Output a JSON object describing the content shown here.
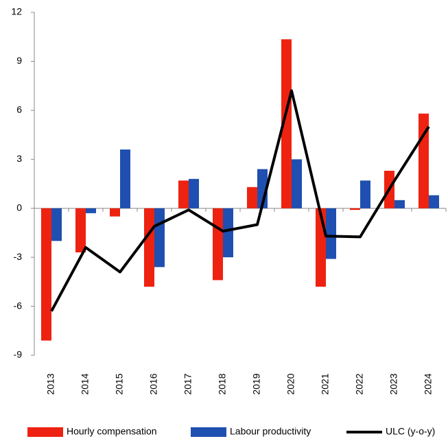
{
  "chart_data": {
    "type": "bar_line",
    "categories": [
      "2013",
      "2014",
      "2015",
      "2016",
      "2017",
      "2018",
      "2019",
      "2020",
      "2021",
      "2022",
      "2023",
      "2024"
    ],
    "series": [
      {
        "name": "Hourly compensation",
        "type": "bar",
        "color": "#ee2211",
        "values": [
          -8.1,
          -2.7,
          -0.5,
          -4.8,
          1.7,
          -4.4,
          1.3,
          10.35,
          -4.8,
          -0.1,
          2.3,
          5.8
        ]
      },
      {
        "name": "Labour productivity",
        "type": "bar",
        "color": "#1f4fb0",
        "values": [
          -2.0,
          -0.3,
          3.6,
          -3.6,
          1.8,
          -3.0,
          2.4,
          3.0,
          -3.1,
          1.7,
          0.5,
          0.8
        ]
      },
      {
        "name": "ULC (y-o-y)",
        "type": "line",
        "color": "#000000",
        "values": [
          -6.3,
          -2.4,
          -3.9,
          -1.1,
          -0.1,
          -1.4,
          -1.0,
          7.2,
          -1.7,
          -1.75,
          1.7,
          5.0
        ]
      }
    ],
    "ylim": [
      -9,
      12
    ],
    "yticks": [
      -9,
      -6,
      -3,
      0,
      3,
      6,
      9,
      12
    ],
    "legend": "bottom"
  }
}
